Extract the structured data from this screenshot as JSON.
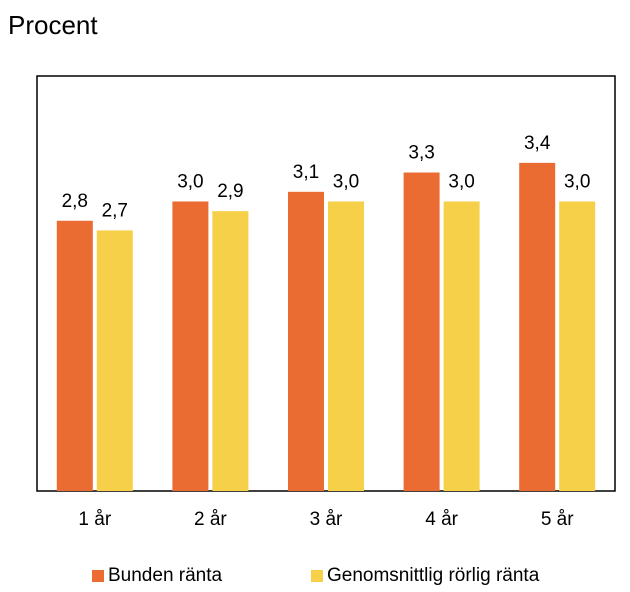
{
  "chart_data": {
    "type": "bar",
    "ylabel": "Procent",
    "categories": [
      "1 år",
      "2 år",
      "3 år",
      "4 år",
      "5 år"
    ],
    "series": [
      {
        "name": "Bunden ränta",
        "color": "#EB6C32",
        "values": [
          2.8,
          3.0,
          3.1,
          3.3,
          3.4
        ],
        "labels": [
          "2,8",
          "3,0",
          "3,1",
          "3,3",
          "3,4"
        ]
      },
      {
        "name": "Genomsnittlig rörlig ränta",
        "color": "#F5D048",
        "values": [
          2.7,
          2.9,
          3.0,
          3.0,
          3.0
        ],
        "labels": [
          "2,7",
          "2,9",
          "3,0",
          "3,0",
          "3,0"
        ]
      }
    ],
    "ylim": [
      0,
      4.3
    ],
    "legend_position": "bottom",
    "grid": false
  }
}
